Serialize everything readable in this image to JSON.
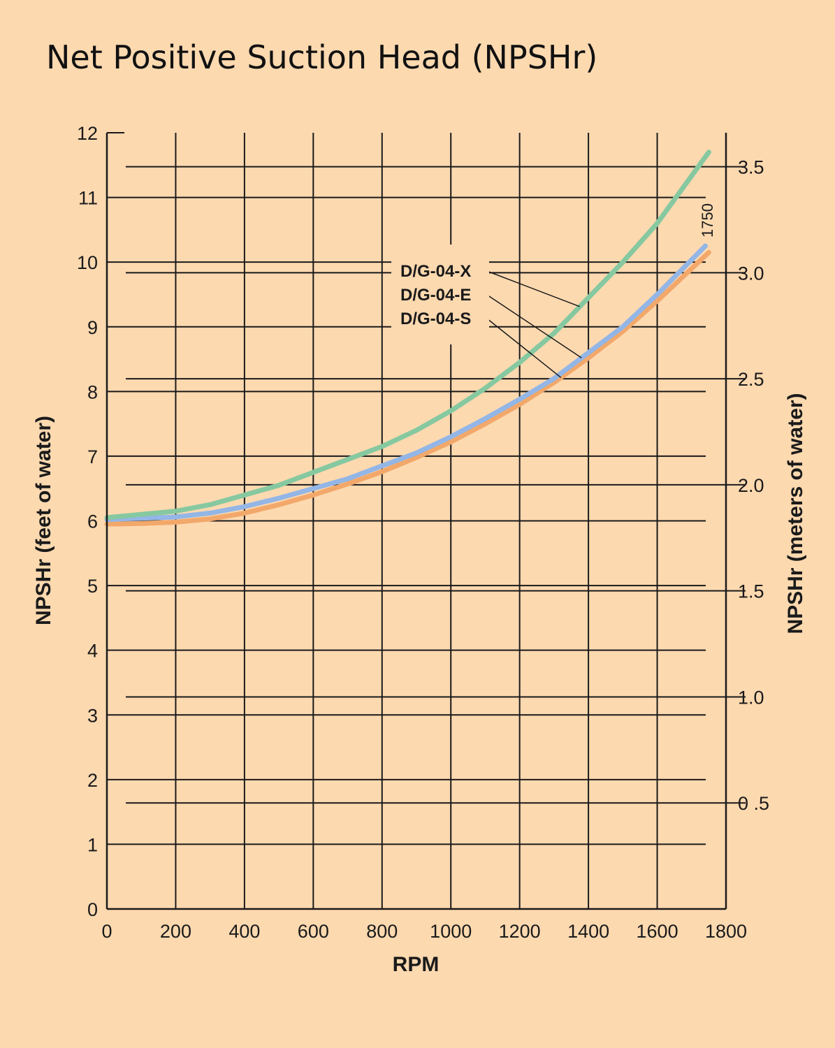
{
  "chart_data": {
    "type": "line",
    "title": "Net Positive Suction Head (NPSHr)",
    "xlabel": "RPM",
    "ylabel": "NPSHr (feet of water)",
    "y2label": "NPSHr (meters of water)",
    "xlim": [
      0,
      1800
    ],
    "ylim": [
      0,
      12
    ],
    "y2lim": [
      0,
      3.66
    ],
    "x_ticks": [
      "0",
      "200",
      "400",
      "600",
      "800",
      "1000",
      "1200",
      "1400",
      "1600",
      "1800"
    ],
    "y_ticks": [
      "0",
      "1",
      "2",
      "3",
      "4",
      "5",
      "6",
      "7",
      "8",
      "9",
      "10",
      "11",
      "12"
    ],
    "y2_ticks": [
      {
        "value": 0.5,
        "label": "0 .5"
      },
      {
        "value": 1.0,
        "label": "1.0"
      },
      {
        "value": 1.5,
        "label": "1.5"
      },
      {
        "value": 2.0,
        "label": "2.0"
      },
      {
        "value": 2.5,
        "label": "2.5"
      },
      {
        "value": 3.0,
        "label": "3.0"
      },
      {
        "value": 3.5,
        "label": "3.5"
      }
    ],
    "grid": true,
    "annotation": "1750",
    "series": [
      {
        "name": "D/G-04-X",
        "color": "#86c8a0",
        "x": [
          0,
          100,
          200,
          300,
          400,
          500,
          600,
          700,
          800,
          900,
          1000,
          1100,
          1200,
          1300,
          1400,
          1500,
          1600,
          1750
        ],
        "y": [
          6.05,
          6.1,
          6.15,
          6.25,
          6.4,
          6.55,
          6.75,
          6.95,
          7.15,
          7.4,
          7.7,
          8.05,
          8.45,
          8.9,
          9.45,
          10.0,
          10.6,
          11.7
        ]
      },
      {
        "name": "D/G-04-E",
        "color": "#93b6e6",
        "x": [
          0,
          100,
          200,
          300,
          400,
          500,
          600,
          700,
          800,
          900,
          1000,
          1100,
          1200,
          1300,
          1400,
          1500,
          1600,
          1740
        ],
        "y": [
          6.02,
          6.04,
          6.06,
          6.12,
          6.22,
          6.35,
          6.5,
          6.65,
          6.85,
          7.05,
          7.3,
          7.58,
          7.88,
          8.2,
          8.6,
          9.0,
          9.5,
          10.25
        ]
      },
      {
        "name": "D/G-04-S",
        "color": "#f2a86a",
        "x": [
          0,
          100,
          200,
          300,
          400,
          500,
          600,
          700,
          800,
          900,
          1000,
          1100,
          1200,
          1300,
          1400,
          1500,
          1600,
          1750
        ],
        "y": [
          5.95,
          5.96,
          5.98,
          6.03,
          6.12,
          6.25,
          6.4,
          6.57,
          6.76,
          6.98,
          7.22,
          7.5,
          7.8,
          8.14,
          8.52,
          8.93,
          9.4,
          10.15
        ]
      }
    ]
  }
}
